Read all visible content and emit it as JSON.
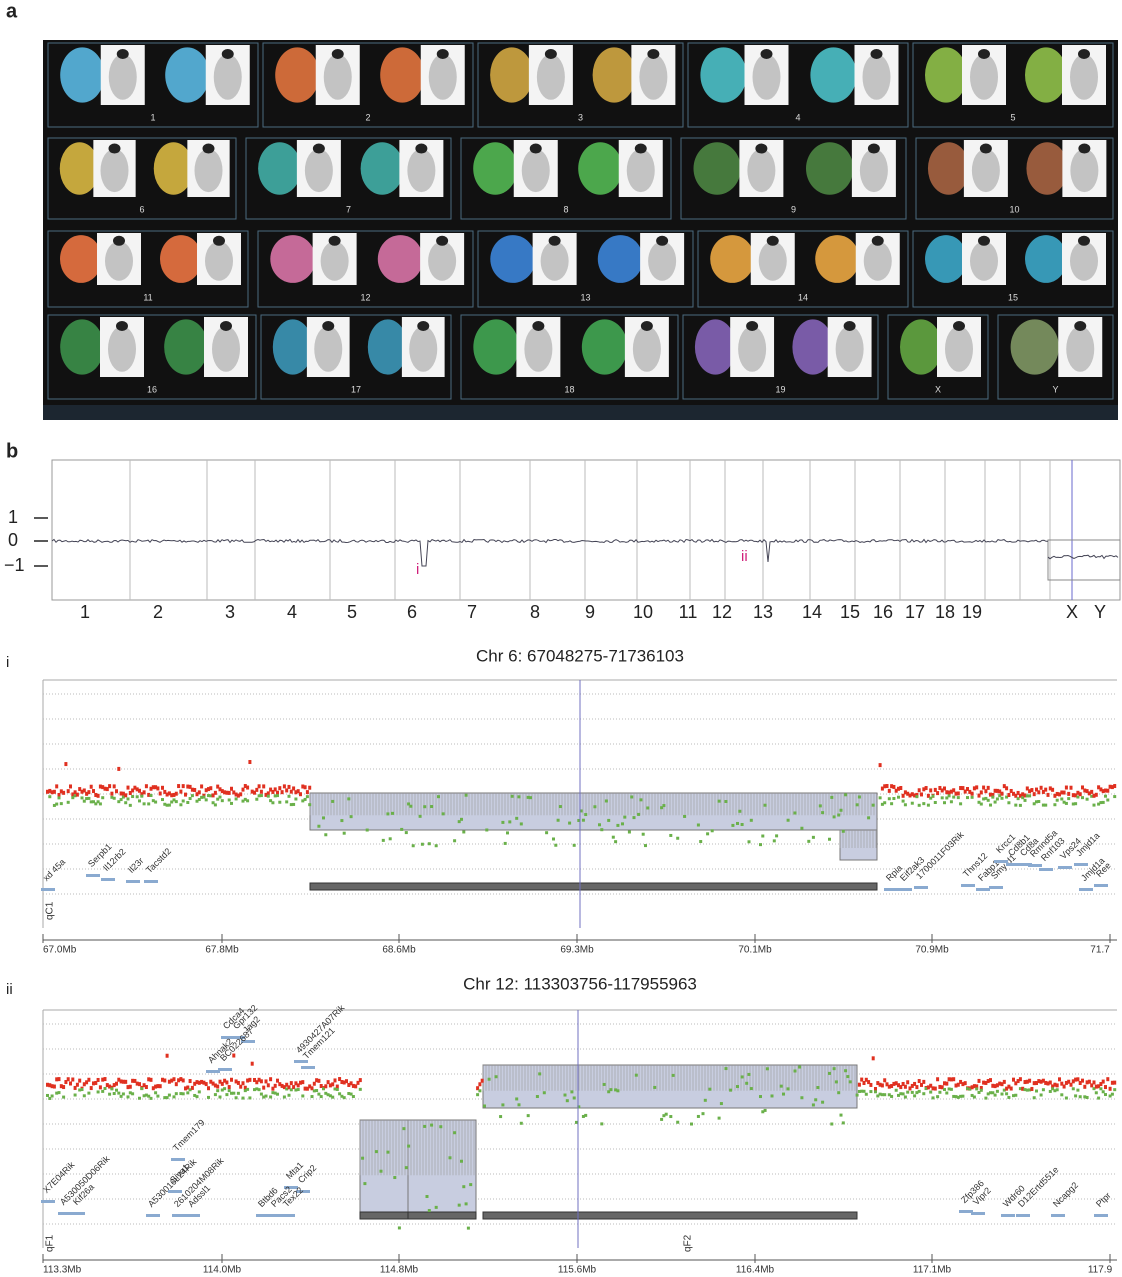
{
  "panel_a": {
    "label": "a",
    "chromosomes": [
      {
        "label": "1",
        "color": "#56b0d8"
      },
      {
        "label": "2",
        "color": "#d8703c"
      },
      {
        "label": "3",
        "color": "#c8a040"
      },
      {
        "label": "4",
        "color": "#4ab8c0"
      },
      {
        "label": "5",
        "color": "#8ab848"
      },
      {
        "label": "6",
        "color": "#d0b040"
      },
      {
        "label": "7",
        "color": "#40a8a0"
      },
      {
        "label": "8",
        "color": "#50b050"
      },
      {
        "label": "9",
        "color": "#4a8040"
      },
      {
        "label": "10",
        "color": "#a06040"
      },
      {
        "label": "11",
        "color": "#e07040"
      },
      {
        "label": "12",
        "color": "#d070a0"
      },
      {
        "label": "13",
        "color": "#3a80d0"
      },
      {
        "label": "14",
        "color": "#e0a040"
      },
      {
        "label": "15",
        "color": "#3aa0c0"
      },
      {
        "label": "16",
        "color": "#3a8a48"
      },
      {
        "label": "17",
        "color": "#3a90b0"
      },
      {
        "label": "18",
        "color": "#40a050"
      },
      {
        "label": "19",
        "color": "#8060b0"
      },
      {
        "label": "X",
        "color": "#60a040"
      },
      {
        "label": "Y",
        "color": "#7a9060"
      }
    ]
  },
  "panel_b": {
    "label": "b",
    "y_labels": [
      "1",
      "0",
      "−1"
    ],
    "chromosomes": [
      "1",
      "2",
      "3",
      "4",
      "5",
      "6",
      "7",
      "8",
      "9",
      "10",
      "11",
      "12",
      "13",
      "14",
      "15",
      "16",
      "17",
      "18",
      "19",
      "X",
      "Y"
    ],
    "markers": [
      "i",
      "ii"
    ]
  },
  "panel_i": {
    "label": "i",
    "title": "Chr 6: 67048275-71736103",
    "bands": [
      "qC1"
    ],
    "ticks": [
      "67.0Mb",
      "67.8Mb",
      "68.6Mb",
      "69.3Mb",
      "70.1Mb",
      "70.9Mb",
      "71.7"
    ],
    "genes": [
      "xd 45a",
      "Serpb1",
      "Il12rb2",
      "Il23r",
      "Tacstd2",
      "Rpia",
      "Eif2ak3",
      "1700011F03Rik",
      "Thns12",
      "Fabp1",
      "Smy d1",
      "Krcc1",
      "Cd8b1",
      "Cd8a",
      "Rmnd5a",
      "Rnf103",
      "Vps24",
      "Jmjd1a",
      "Jmjd1a",
      "Ree"
    ]
  },
  "panel_ii": {
    "label": "ii",
    "title": "Chr 12: 113303756-117955963",
    "bands": [
      "qF1",
      "qF2"
    ],
    "ticks": [
      "113.3Mb",
      "114.0Mb",
      "114.8Mb",
      "115.6Mb",
      "116.4Mb",
      "117.1Mb",
      "117.9"
    ],
    "genes": [
      "Cdca4",
      "Gpr132",
      "Jag2",
      "Ahnak2",
      "BC022687",
      "4930427A07Rik",
      "Tmem121",
      "Tmem179",
      "X7E04Rik",
      "A530050D06Rik",
      "Kif26a",
      "A530016L24Rik",
      "Siva1",
      "2610204M08Rik",
      "Adssl1",
      "Mta1",
      "Crip2",
      "Btbd6",
      "Pacs2",
      "Tex22",
      "Zfp386",
      "Vipr2",
      "Wdr60",
      "D12Ertd551e",
      "Ncapg2",
      "Ptpr"
    ]
  }
}
